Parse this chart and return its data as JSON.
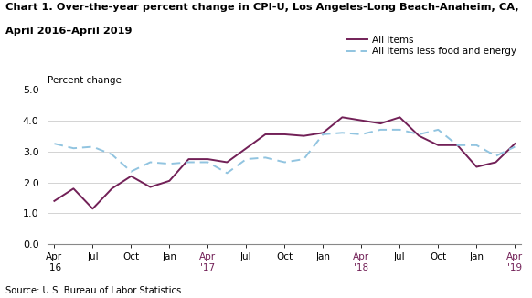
{
  "title_line1": "Chart 1. Over-the-year percent change in CPI-U, Los Angeles-Long Beach-Anaheim, CA,",
  "title_line2": "April 2016–April 2019",
  "ylabel": "Percent change",
  "source": "Source: U.S. Bureau of Labor Statistics.",
  "ylim": [
    0.0,
    5.0
  ],
  "yticks": [
    0.0,
    1.0,
    2.0,
    3.0,
    4.0,
    5.0
  ],
  "all_items_color": "#722057",
  "core_color": "#91c4e0",
  "legend_label_all": "All items",
  "legend_label_core": "All items less food and energy",
  "x_tick_labels": [
    "Apr\n'16",
    "Jul",
    "Oct",
    "Jan",
    "Apr\n'17",
    "Jul",
    "Oct",
    "Jan",
    "Apr\n'18",
    "Jul",
    "Oct",
    "Jan",
    "Apr\n'19"
  ],
  "x_tick_positions": [
    0,
    3,
    6,
    9,
    12,
    15,
    18,
    21,
    24,
    27,
    30,
    33,
    36
  ],
  "year_label_indices": [
    0,
    4,
    8,
    12
  ],
  "all_items": [
    1.4,
    1.8,
    1.15,
    1.8,
    2.2,
    1.85,
    2.05,
    2.75,
    2.75,
    2.65,
    3.1,
    3.55,
    3.55,
    3.5,
    3.6,
    4.1,
    4.0,
    3.9,
    4.1,
    3.5,
    3.2,
    3.2,
    2.5,
    2.65,
    3.25
  ],
  "core_items": [
    3.25,
    3.1,
    3.15,
    2.9,
    2.35,
    2.65,
    2.6,
    2.65,
    2.65,
    2.3,
    2.75,
    2.8,
    2.65,
    2.75,
    3.55,
    3.6,
    3.55,
    3.7,
    3.7,
    3.55,
    3.7,
    3.2,
    3.2,
    2.85,
    3.15
  ],
  "n_points": 25,
  "x_start": 0,
  "x_end": 36
}
